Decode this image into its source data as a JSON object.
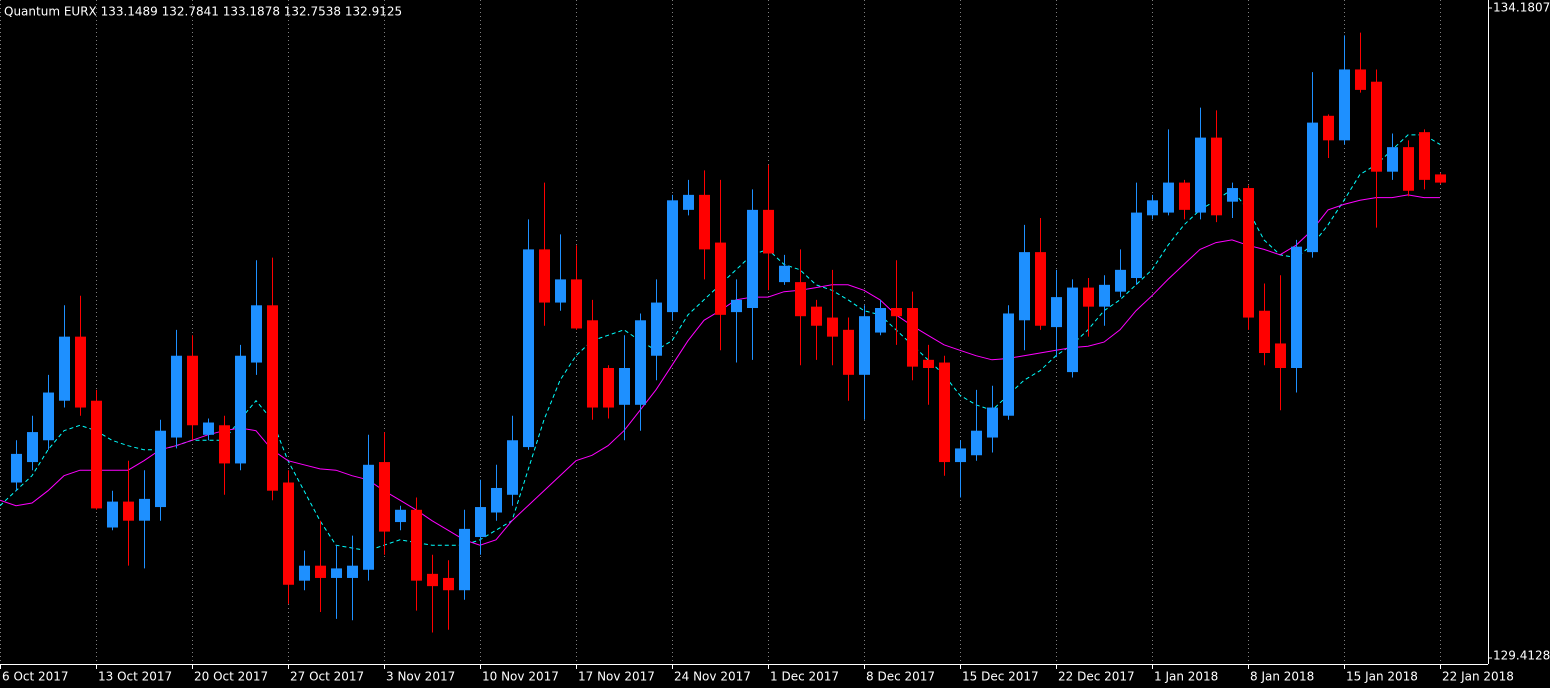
{
  "chart_data": {
    "type": "candlestick",
    "title": "Quantum EURX 133.1489 132.7841 133.1878 132.7538 132.9125",
    "categories": [
      "6 Oct 2017",
      null,
      null,
      null,
      null,
      null,
      "13 Oct 2017",
      null,
      null,
      null,
      null,
      null,
      "20 Oct 2017",
      null,
      null,
      null,
      null,
      null,
      "27 Oct 2017",
      null,
      null,
      null,
      null,
      null,
      "3 Nov 2017",
      null,
      null,
      null,
      null,
      null,
      "10 Nov 2017",
      null,
      null,
      null,
      null,
      null,
      "17 Nov 2017",
      null,
      null,
      null,
      null,
      null,
      "24 Nov 2017",
      null,
      null,
      null,
      null,
      null,
      "1 Dec 2017",
      null,
      null,
      null,
      null,
      null,
      "8 Dec 2017",
      null,
      null,
      null,
      null,
      null,
      "15 Dec 2017",
      null,
      null,
      null,
      null,
      null,
      "22 Dec 2017",
      null,
      null,
      null,
      null,
      null,
      "1 Jan 2018",
      null,
      null,
      null,
      null,
      null,
      "8 Jan 2018",
      null,
      null,
      null,
      null,
      null,
      "15 Jan 2018",
      null,
      null,
      null,
      null,
      null,
      "22 Jan 2018"
    ],
    "open": [
      null,
      130.7,
      130.85,
      131.01,
      131.3,
      131.77,
      131.3,
      130.37,
      130.56,
      130.42,
      130.52,
      131.03,
      131.63,
      131.05,
      131.12,
      130.84,
      131.58,
      132.0,
      130.7,
      129.98,
      130.09,
      130.0,
      130.0,
      130.06,
      130.85,
      130.41,
      130.5,
      130.03,
      130.0,
      129.91,
      130.3,
      130.48,
      130.61,
      130.96,
      132.41,
      132.02,
      132.19,
      131.89,
      131.54,
      131.27,
      131.27,
      131.63,
      131.95,
      132.7,
      132.81,
      132.46,
      131.95,
      131.98,
      132.7,
      132.17,
      132.17,
      131.99,
      131.91,
      131.82,
      131.49,
      131.8,
      131.98,
      131.98,
      131.6,
      131.58,
      130.85,
      130.9,
      131.03,
      131.19,
      131.89,
      132.39,
      131.84,
      131.51,
      132.13,
      131.99,
      132.1,
      132.2,
      132.66,
      132.68,
      132.9,
      132.68,
      133.23,
      132.76,
      132.86,
      131.96,
      131.72,
      131.54,
      132.39,
      133.39,
      133.21,
      133.73,
      133.64,
      132.98,
      133.16,
      133.27,
      132.96
    ],
    "high": [
      null,
      131.01,
      131.19,
      131.49,
      132.0,
      132.07,
      131.38,
      130.64,
      130.86,
      130.79,
      131.16,
      131.82,
      131.78,
      131.17,
      131.19,
      131.71,
      132.33,
      132.35,
      130.79,
      130.2,
      130.42,
      130.24,
      130.31,
      131.05,
      131.07,
      130.53,
      130.59,
      130.17,
      130.13,
      130.5,
      130.72,
      130.83,
      131.19,
      132.63,
      132.9,
      132.52,
      132.44,
      132.04,
      131.56,
      131.78,
      131.94,
      132.19,
      132.81,
      132.92,
      132.99,
      132.92,
      132.19,
      132.85,
      133.03,
      132.37,
      132.41,
      132.04,
      132.26,
      131.91,
      132.0,
      132.04,
      132.33,
      132.1,
      131.71,
      131.63,
      131.01,
      131.38,
      131.41,
      132.0,
      132.59,
      132.64,
      132.26,
      132.19,
      132.2,
      132.22,
      132.41,
      132.9,
      132.81,
      133.29,
      132.92,
      133.45,
      133.43,
      132.9,
      132.88,
      132.16,
      132.22,
      132.48,
      133.71,
      133.4,
      133.98,
      134.0,
      133.73,
      133.26,
      133.21,
      133.29,
      132.97
    ],
    "low": [
      null,
      130.64,
      130.79,
      130.94,
      131.25,
      131.19,
      130.5,
      130.35,
      130.09,
      130.07,
      130.42,
      130.95,
      131.01,
      131.01,
      130.61,
      130.79,
      131.49,
      130.57,
      129.81,
      129.91,
      129.75,
      129.7,
      129.69,
      129.98,
      130.17,
      130.35,
      129.76,
      129.6,
      129.62,
      129.84,
      130.17,
      130.42,
      130.53,
      130.94,
      131.85,
      131.96,
      131.82,
      131.16,
      131.17,
      131.01,
      131.08,
      131.45,
      131.89,
      132.66,
      132.19,
      131.67,
      131.58,
      131.6,
      132.11,
      132.15,
      131.56,
      131.6,
      131.56,
      131.3,
      131.16,
      131.78,
      131.71,
      131.45,
      131.27,
      130.75,
      130.59,
      130.86,
      130.92,
      131.16,
      131.67,
      131.82,
      131.62,
      131.47,
      131.77,
      131.85,
      132.06,
      132.15,
      132.63,
      132.66,
      132.63,
      132.63,
      132.61,
      132.64,
      131.82,
      131.56,
      131.23,
      131.36,
      132.35,
      133.08,
      133.18,
      133.56,
      132.57,
      132.92,
      132.8,
      132.85,
      132.89
    ],
    "close": [
      null,
      130.91,
      131.07,
      131.36,
      131.77,
      131.25,
      130.51,
      130.56,
      130.42,
      130.58,
      131.08,
      131.63,
      131.12,
      131.14,
      130.84,
      131.63,
      132.0,
      130.64,
      129.95,
      130.09,
      130.0,
      130.07,
      130.09,
      130.83,
      130.34,
      130.5,
      129.98,
      129.94,
      129.91,
      130.36,
      130.52,
      130.66,
      131.01,
      132.41,
      132.02,
      132.19,
      131.83,
      131.25,
      131.25,
      131.54,
      131.89,
      132.02,
      132.77,
      132.81,
      132.41,
      131.93,
      132.04,
      132.7,
      132.38,
      132.29,
      131.92,
      131.85,
      131.77,
      131.49,
      131.92,
      131.98,
      131.92,
      131.55,
      131.54,
      130.85,
      130.95,
      131.08,
      131.25,
      131.94,
      132.39,
      131.85,
      132.06,
      132.13,
      131.99,
      132.15,
      132.26,
      132.68,
      132.77,
      132.9,
      132.7,
      133.23,
      132.66,
      132.86,
      131.91,
      131.65,
      131.54,
      132.43,
      133.34,
      133.21,
      133.73,
      133.58,
      132.98,
      133.16,
      132.84,
      132.92,
      132.9
    ],
    "up_color": "#1e90ff",
    "down_color": "#ff0000",
    "overlays": [
      {
        "color": "#00ffff",
        "dashed": true,
        "values": [
          130.53,
          130.64,
          130.75,
          130.94,
          131.08,
          131.12,
          131.08,
          131.01,
          130.97,
          130.94,
          130.94,
          130.97,
          131.01,
          131.01,
          131.01,
          131.16,
          131.3,
          131.16,
          130.86,
          130.64,
          130.42,
          130.24,
          130.22,
          130.2,
          130.24,
          130.28,
          130.26,
          130.24,
          130.24,
          130.24,
          130.28,
          130.35,
          130.42,
          130.79,
          131.16,
          131.45,
          131.63,
          131.74,
          131.78,
          131.82,
          131.74,
          131.67,
          131.74,
          131.93,
          132.04,
          132.15,
          132.26,
          132.37,
          132.41,
          132.3,
          132.26,
          132.15,
          132.11,
          132.04,
          131.96,
          131.93,
          131.82,
          131.71,
          131.6,
          131.49,
          131.34,
          131.27,
          131.23,
          131.34,
          131.45,
          131.52,
          131.63,
          131.71,
          131.82,
          131.96,
          132.04,
          132.15,
          132.26,
          132.44,
          132.59,
          132.7,
          132.77,
          132.85,
          132.7,
          132.48,
          132.37,
          132.35,
          132.44,
          132.59,
          132.77,
          132.96,
          133.03,
          133.14,
          133.25,
          133.25,
          133.18
        ]
      },
      {
        "color": "#ff00ff",
        "dashed": false,
        "values": [
          130.57,
          130.53,
          130.55,
          130.64,
          130.75,
          130.79,
          130.79,
          130.79,
          130.79,
          130.86,
          130.94,
          130.97,
          131.01,
          131.05,
          131.08,
          131.1,
          131.08,
          130.94,
          130.86,
          130.83,
          130.8,
          130.79,
          130.75,
          130.72,
          130.64,
          130.57,
          130.5,
          130.42,
          130.35,
          130.28,
          130.24,
          130.28,
          130.42,
          130.53,
          130.64,
          130.75,
          130.86,
          130.9,
          130.97,
          131.08,
          131.23,
          131.38,
          131.56,
          131.74,
          131.89,
          131.96,
          132.04,
          132.06,
          132.06,
          132.1,
          132.11,
          132.13,
          132.15,
          132.15,
          132.11,
          132.04,
          131.93,
          131.85,
          131.78,
          131.71,
          131.67,
          131.63,
          131.6,
          131.61,
          131.63,
          131.65,
          131.67,
          131.69,
          131.7,
          131.73,
          131.82,
          131.96,
          132.07,
          132.19,
          132.3,
          132.41,
          132.46,
          132.48,
          132.44,
          132.41,
          132.37,
          132.44,
          132.55,
          132.7,
          132.74,
          132.77,
          132.79,
          132.79,
          132.81,
          132.79,
          132.79
        ]
      }
    ],
    "ylim": [
      129.4128,
      134.1807
    ],
    "yticks": [
      129.4128,
      134.1807
    ],
    "grid": true
  }
}
